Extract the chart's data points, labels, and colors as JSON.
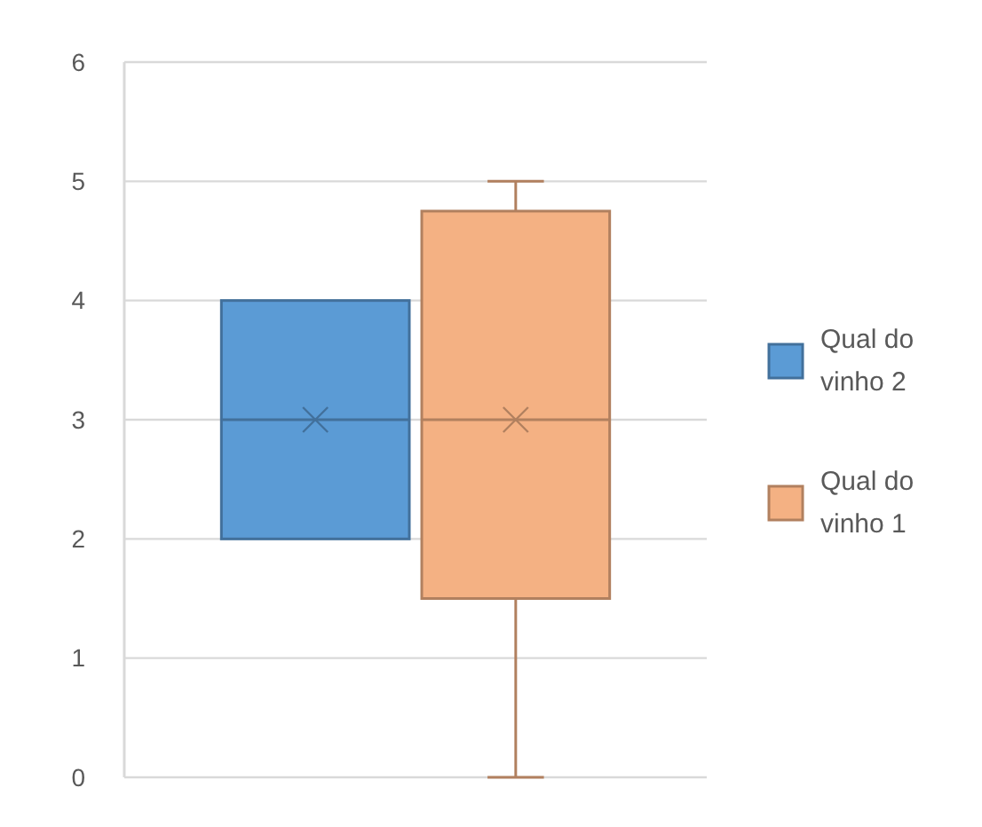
{
  "chart_data": {
    "type": "box",
    "categories": [
      null
    ],
    "ylim": [
      0,
      6
    ],
    "yticks": [
      0,
      1,
      2,
      3,
      4,
      5,
      6
    ],
    "grid": "y",
    "legend": "right",
    "series": [
      {
        "name": "Qual do vinho 2",
        "color": "#5b9bd5",
        "boxes": [
          {
            "low": 2,
            "q1": 2,
            "median": 3,
            "q3": 4,
            "high": 4,
            "mean": 3
          }
        ]
      },
      {
        "name": "Qual do vinho 1",
        "color": "#f4b183",
        "boxes": [
          {
            "low": 0,
            "q1": 1.5,
            "median": 3,
            "q3": 4.75,
            "high": 5,
            "mean": 3
          }
        ]
      }
    ]
  }
}
